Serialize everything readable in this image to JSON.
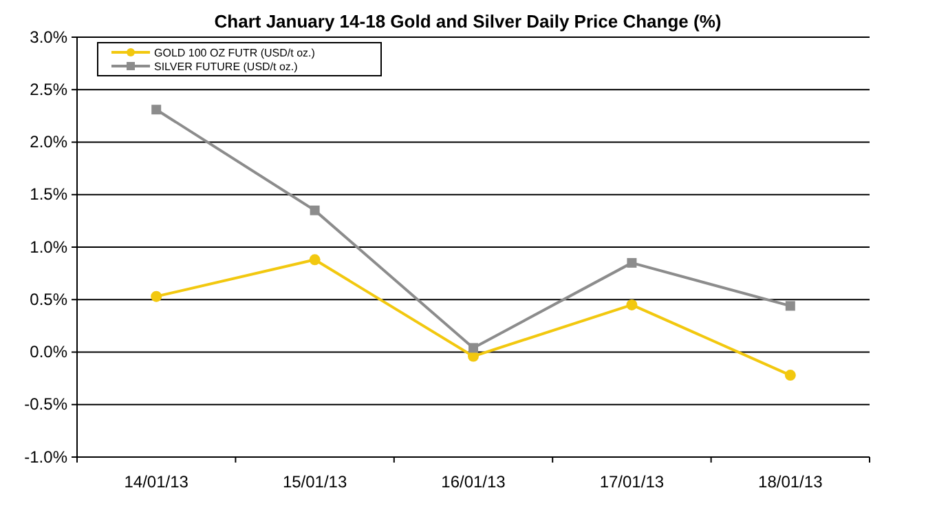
{
  "chart_data": {
    "type": "line",
    "title": "Chart  January 14-18 Gold and Silver Daily Price Change (%)",
    "categories": [
      "14/01/13",
      "15/01/13",
      "16/01/13",
      "17/01/13",
      "18/01/13"
    ],
    "series": [
      {
        "name": "GOLD 100 OZ FUTR (USD/t oz.)",
        "color": "#f2c80f",
        "marker": "circle",
        "values": [
          0.53,
          0.88,
          -0.04,
          0.45,
          -0.22
        ]
      },
      {
        "name": "SILVER FUTURE (USD/t oz.)",
        "color": "#8c8c8c",
        "marker": "square",
        "values": [
          2.31,
          1.35,
          0.04,
          0.85,
          0.44
        ]
      }
    ],
    "ylim": [
      -1.0,
      3.0
    ],
    "yticks": [
      {
        "value": -1.0,
        "label": "-1.0%"
      },
      {
        "value": -0.5,
        "label": "-0.5%"
      },
      {
        "value": 0,
        "label": "0.0%"
      },
      {
        "value": 0.5,
        "label": "0.5%"
      },
      {
        "value": 1.0,
        "label": "1.0%"
      },
      {
        "value": 1.5,
        "label": "1.5%"
      },
      {
        "value": 2.0,
        "label": "2.0%"
      },
      {
        "value": 2.5,
        "label": "2.5%"
      },
      {
        "value": 3.0,
        "label": "3.0%"
      }
    ],
    "grid": "y",
    "legend": "top left"
  }
}
